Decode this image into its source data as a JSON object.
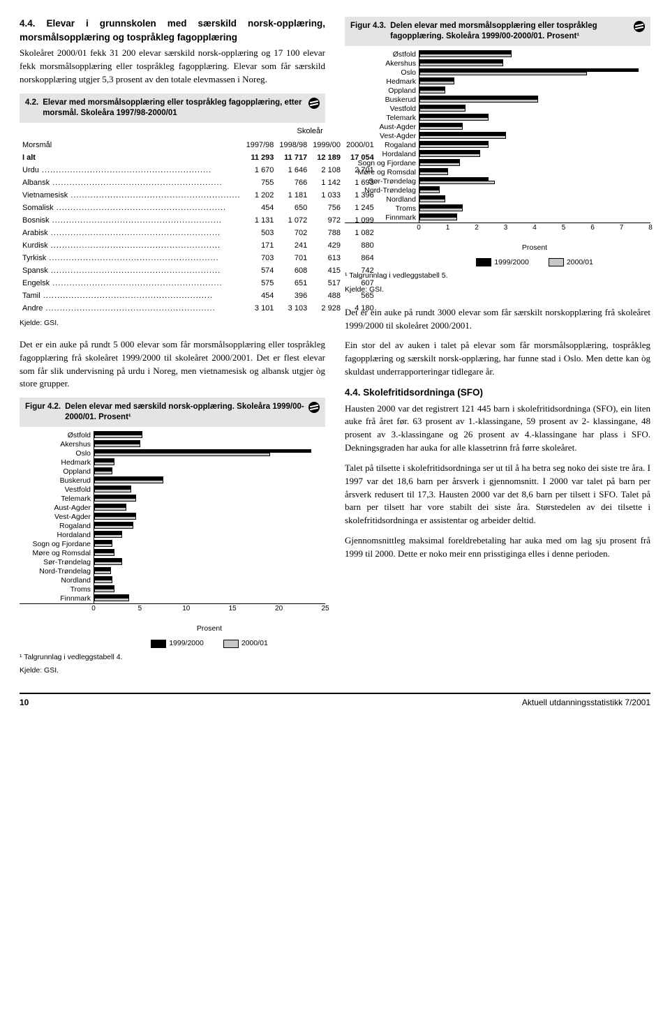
{
  "leftCol": {
    "heading": "4.4. Elevar i grunnskolen med særskild norsk-opplæring, morsmålsopplæring og tospråkleg fagopplæring",
    "para1": "Skoleåret 2000/01 fekk 31 200 elevar særskild norsk-opplæring og 17 100 elevar fekk morsmålsopplæring eller tospråkleg fagopplæring. Elevar som får særskild norskopplæring utgjer 5,3 prosent av den totale elevmassen i Noreg.",
    "tableBox": {
      "num": "4.2.",
      "title": "Elevar med morsmålsopplæring eller tospråkleg fagopplæring, etter morsmål. Skoleåra 1997/98-2000/01"
    },
    "table": {
      "superhead": "Skoleår",
      "head": [
        "Morsmål",
        "1997/98",
        "1998/98",
        "1999/00",
        "2000/01"
      ],
      "rows": [
        [
          "I alt",
          "11 293",
          "11 717",
          "12 189",
          "17 054"
        ],
        [
          "Urdu",
          "1 670",
          "1 646",
          "2 108",
          "2 701"
        ],
        [
          "Albansk",
          "755",
          "766",
          "1 142",
          "1 693"
        ],
        [
          "Vietnamesisk",
          "1 202",
          "1 181",
          "1 033",
          "1 396"
        ],
        [
          "Somalisk",
          "454",
          "650",
          "756",
          "1 245"
        ],
        [
          "Bosnisk",
          "1 131",
          "1 072",
          "972",
          "1 099"
        ],
        [
          "Arabisk",
          "503",
          "702",
          "788",
          "1 082"
        ],
        [
          "Kurdisk",
          "171",
          "241",
          "429",
          "880"
        ],
        [
          "Tyrkisk",
          "703",
          "701",
          "613",
          "864"
        ],
        [
          "Spansk",
          "574",
          "608",
          "415",
          "742"
        ],
        [
          "Engelsk",
          "575",
          "651",
          "517",
          "607"
        ],
        [
          "Tamil",
          "454",
          "396",
          "488",
          "565"
        ],
        [
          "Andre",
          "3 101",
          "3 103",
          "2 928",
          "4 180"
        ]
      ],
      "source": "Kjelde: GSI."
    },
    "para2": "Det er ein auke på rundt 5 000 elevar som får morsmålsopplæring eller tospråkleg fagopplæring frå skoleåret 1999/2000 til skoleåret 2000/2001. Det er flest elevar som får slik undervisning på urdu i Noreg, men vietnamesisk og albansk utgjer òg store grupper.",
    "fig42": {
      "num": "Figur 4.2.",
      "title": "Delen elevar med særskild norsk-opplæring. Skoleåra 1999/00-2000/01. Prosent¹",
      "footnote": "¹ Talgrunnlag i vedleggstabell 4.",
      "source": "Kjelde: GSI."
    }
  },
  "rightCol": {
    "fig43": {
      "num": "Figur 4.3.",
      "title": "Delen elevar med morsmålsopplæring eller tospråkleg fagopplæring. Skoleåra 1999/00-2000/01. Prosent¹",
      "footnote": "¹ Talgrunnlag i vedleggstabell 5.",
      "source": "Kjelde: GSI."
    },
    "para3": "Det er ein auke på rundt 3000 elevar som får særskilt norskopplæring frå skoleåret 1999/2000 til skoleåret 2000/2001.",
    "para4": "Ein stor del av auken i talet på elevar som får morsmålsopplæring, tospråkleg fagopplæring og særskilt norsk-opplæring, har funne stad i Oslo. Men dette kan òg skuldast underrapporteringar tidlegare år.",
    "heading44": "4.4. Skolefritidsordninga (SFO)",
    "para5": "Hausten 2000 var det registrert 121 445 barn i skolefritidsordninga (SFO), ein liten auke frå året før. 63 prosent av 1.-klassingane, 59 prosent av 2- klassingane, 48 prosent av 3.-klassingane og 26 prosent av 4.-klassingane har plass i SFO. Dekningsgraden har auka for alle klassetrinn frå førre skoleåret.",
    "para6": "Talet på tilsette i skolefritidsordninga ser ut til å ha betra seg noko dei siste tre åra. I 1997 var det 18,6 barn per årsverk i gjennomsnitt. I 2000 var talet på barn per årsverk redusert til 17,3. Hausten 2000 var det 8,6 barn per tilsett i SFO. Talet på barn per tilsett har vore stabilt dei siste åra. Størstedelen av dei tilsette i skolefritidsordninga er assistentar og arbeider deltid.",
    "para7": "Gjennomsnittleg maksimal foreldrebetaling har auka med om lag sju prosent frå 1999 til 2000. Dette er noko meir enn prisstiginga elles i denne perioden."
  },
  "charts": {
    "categories": [
      "Østfold",
      "Akershus",
      "Oslo",
      "Hedmark",
      "Oppland",
      "Buskerud",
      "Vestfold",
      "Telemark",
      "Aust-Agder",
      "Vest-Agder",
      "Rogaland",
      "Hordaland",
      "Sogn og Fjordane",
      "Møre og Romsdal",
      "Sør-Trøndelag",
      "Nord-Trøndelag",
      "Nordland",
      "Troms",
      "Finnmark"
    ],
    "fig42": {
      "xmax": 25,
      "ticks": [
        0,
        5,
        10,
        15,
        20,
        25
      ],
      "s1": [
        5.2,
        5.0,
        23.5,
        2.2,
        2.0,
        7.5,
        4.0,
        4.5,
        3.5,
        4.5,
        4.2,
        3.0,
        2.0,
        2.2,
        3.0,
        1.8,
        2.0,
        2.2,
        3.8
      ],
      "s2": [
        5.2,
        5.0,
        19.0,
        2.2,
        2.0,
        7.5,
        4.0,
        4.5,
        3.5,
        4.5,
        4.2,
        3.0,
        2.0,
        2.2,
        3.0,
        1.8,
        2.0,
        2.2,
        3.8
      ]
    },
    "fig43": {
      "xmax": 8,
      "ticks": [
        0,
        1,
        2,
        3,
        4,
        5,
        6,
        7,
        8
      ],
      "s1": [
        3.2,
        2.9,
        7.6,
        1.2,
        0.9,
        4.1,
        1.6,
        2.4,
        1.5,
        3.0,
        2.4,
        2.1,
        1.4,
        1.0,
        2.4,
        0.7,
        0.9,
        1.5,
        1.3
      ],
      "s2": [
        3.2,
        2.9,
        5.8,
        1.2,
        0.9,
        4.1,
        1.6,
        2.4,
        1.5,
        3.0,
        2.4,
        2.1,
        1.4,
        1.0,
        2.6,
        0.7,
        0.9,
        1.5,
        1.3
      ]
    },
    "legend": [
      "1999/2000",
      "2000/01"
    ],
    "colors": {
      "s1": "#000000",
      "s2": "#c6c6c6"
    },
    "axis_title": "Prosent"
  },
  "footer": {
    "page": "10",
    "pub": "Aktuell utdanningsstatistikk 7/2001"
  }
}
